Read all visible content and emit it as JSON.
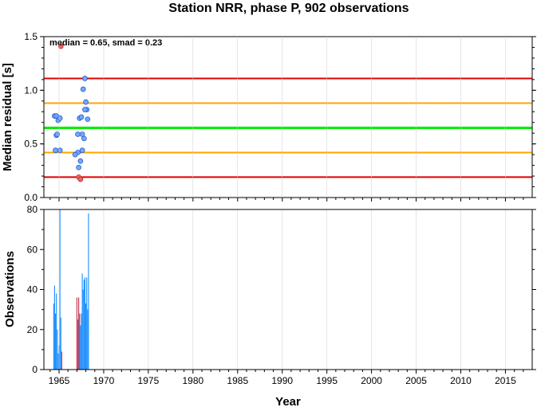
{
  "title": "Station NRR, phase P, 902 observations",
  "chart_data": [
    {
      "type": "scatter",
      "ylabel": "Median residual [s]",
      "annotation": "median = 0.65, smad = 0.23",
      "xlim": [
        1963.3,
        2018
      ],
      "ylim": [
        0,
        1.5
      ],
      "yticks": [
        0,
        0.5,
        1.0,
        1.5
      ],
      "ytick_labels": [
        "0.0",
        "0.5",
        "1.0",
        "1.5"
      ],
      "hlines": [
        {
          "y": 0.65,
          "color": "#00ee00"
        },
        {
          "y": 0.42,
          "color": "#ffa500"
        },
        {
          "y": 0.88,
          "color": "#ffa500"
        },
        {
          "y": 0.19,
          "color": "#e00000"
        },
        {
          "y": 1.11,
          "color": "#e00000"
        }
      ],
      "points_normal_color": "#6fa8ff",
      "points_outlier_color": "#f06060",
      "points": [
        {
          "x": 1964.5,
          "y": 0.76
        },
        {
          "x": 1964.7,
          "y": 0.76
        },
        {
          "x": 1964.9,
          "y": 0.72
        },
        {
          "x": 1965.1,
          "y": 0.74
        },
        {
          "x": 1964.7,
          "y": 0.58
        },
        {
          "x": 1964.8,
          "y": 0.59
        },
        {
          "x": 1964.6,
          "y": 0.44
        },
        {
          "x": 1965.1,
          "y": 0.44
        },
        {
          "x": 1965.2,
          "y": 1.41,
          "outlier": true
        },
        {
          "x": 1967.1,
          "y": 0.59
        },
        {
          "x": 1967.3,
          "y": 0.74
        },
        {
          "x": 1967.5,
          "y": 0.75
        },
        {
          "x": 1967.6,
          "y": 0.59
        },
        {
          "x": 1967.8,
          "y": 0.55
        },
        {
          "x": 1967.1,
          "y": 0.42
        },
        {
          "x": 1967.6,
          "y": 0.44
        },
        {
          "x": 1967.4,
          "y": 0.34
        },
        {
          "x": 1967.2,
          "y": 0.28
        },
        {
          "x": 1966.8,
          "y": 0.4
        },
        {
          "x": 1967.2,
          "y": 0.19,
          "outlier": true
        },
        {
          "x": 1967.4,
          "y": 0.17,
          "outlier": true
        },
        {
          "x": 1967.7,
          "y": 1.01
        },
        {
          "x": 1967.9,
          "y": 1.11
        },
        {
          "x": 1968.0,
          "y": 0.89
        },
        {
          "x": 1968.1,
          "y": 0.82
        },
        {
          "x": 1967.9,
          "y": 0.82
        },
        {
          "x": 1968.2,
          "y": 0.73
        }
      ]
    },
    {
      "type": "bar",
      "xlabel": "Year",
      "ylabel": "Observations",
      "xlim": [
        1963.3,
        2018
      ],
      "ylim": [
        0,
        80
      ],
      "yticks": [
        0,
        20,
        40,
        60,
        80
      ],
      "xticks": [
        1965,
        1970,
        1975,
        1980,
        1985,
        1990,
        1995,
        2000,
        2005,
        2010,
        2015
      ],
      "bar_color": "#1e90ff",
      "outlier_bar_color": "#c0304a",
      "bars": [
        {
          "x": 1964.4,
          "v": 33
        },
        {
          "x": 1964.5,
          "v": 42
        },
        {
          "x": 1964.6,
          "v": 28
        },
        {
          "x": 1964.7,
          "v": 38
        },
        {
          "x": 1964.8,
          "v": 20
        },
        {
          "x": 1964.9,
          "v": 8
        },
        {
          "x": 1965.0,
          "v": 12
        },
        {
          "x": 1965.1,
          "v": 80
        },
        {
          "x": 1965.2,
          "v": 26
        },
        {
          "x": 1965.3,
          "v": 9,
          "outlier": true
        },
        {
          "x": 1967.0,
          "v": 36,
          "outlier": true
        },
        {
          "x": 1967.1,
          "v": 25
        },
        {
          "x": 1967.2,
          "v": 36,
          "outlier": true
        },
        {
          "x": 1967.3,
          "v": 28,
          "outlier": true
        },
        {
          "x": 1967.4,
          "v": 22
        },
        {
          "x": 1967.5,
          "v": 28
        },
        {
          "x": 1967.6,
          "v": 48
        },
        {
          "x": 1967.7,
          "v": 40
        },
        {
          "x": 1967.8,
          "v": 45
        },
        {
          "x": 1967.9,
          "v": 46
        },
        {
          "x": 1968.0,
          "v": 33
        },
        {
          "x": 1968.1,
          "v": 46
        },
        {
          "x": 1968.2,
          "v": 30
        },
        {
          "x": 1968.3,
          "v": 78
        }
      ]
    }
  ]
}
